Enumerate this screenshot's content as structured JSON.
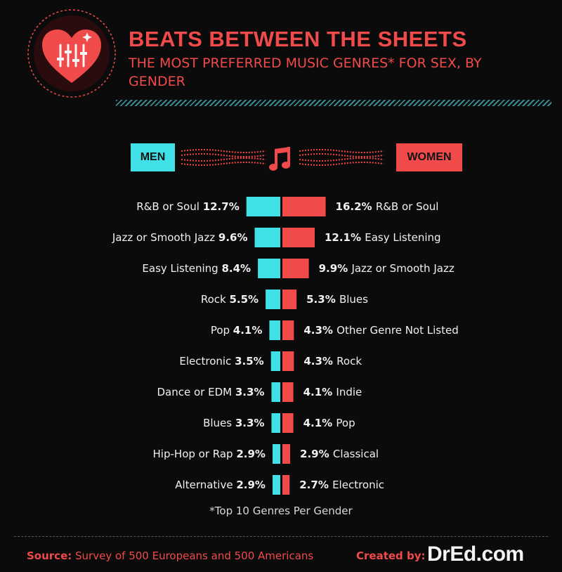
{
  "header": {
    "title": "BEATS BETWEEN THE SHEETS",
    "subtitle": "THE MOST PREFERRED MUSIC GENRES* FOR SEX, BY GENDER"
  },
  "legend": {
    "men": "MEN",
    "women": "WOMEN"
  },
  "colors": {
    "men": "#3fe0e6",
    "women": "#f04a4a",
    "background": "#0b0b0b",
    "accent": "#f04a4a"
  },
  "icons": {
    "logo": "heart-equalizer-icon",
    "music": "music-note-icon"
  },
  "chart_data": {
    "type": "bar",
    "orientation": "diverging-horizontal",
    "series": [
      {
        "name": "MEN",
        "categories": [
          "R&B or Soul",
          "Jazz or Smooth Jazz",
          "Easy Listening",
          "Rock",
          "Pop",
          "Electronic",
          "Dance or EDM",
          "Blues",
          "Hip-Hop or Rap",
          "Alternative"
        ],
        "values": [
          12.7,
          9.6,
          8.4,
          5.5,
          4.1,
          3.5,
          3.3,
          3.3,
          2.9,
          2.9
        ],
        "labels": [
          "12.7%",
          "9.6%",
          "8.4%",
          "5.5%",
          "4.1%",
          "3.5%",
          "3.3%",
          "3.3%",
          "2.9%",
          "2.9%"
        ]
      },
      {
        "name": "WOMEN",
        "categories": [
          "R&B or Soul",
          "Easy Listening",
          "Jazz or Smooth Jazz",
          "Blues",
          "Other Genre Not Listed",
          "Rock",
          "Indie",
          "Pop",
          "Classical",
          "Electronic"
        ],
        "values": [
          16.2,
          12.1,
          9.9,
          5.3,
          4.3,
          4.3,
          4.1,
          4.1,
          2.9,
          2.7
        ],
        "labels": [
          "16.2%",
          "12.1%",
          "9.9%",
          "5.3%",
          "4.3%",
          "4.3%",
          "4.1%",
          "4.1%",
          "2.9%",
          "2.7%"
        ]
      }
    ]
  },
  "footnote": "*Top 10 Genres Per Gender",
  "footer": {
    "source_label": "Source:",
    "source_text": "Survey of 500 Europeans and 500 Americans",
    "created_label": "Created by:",
    "brand": "DrEd.com"
  }
}
